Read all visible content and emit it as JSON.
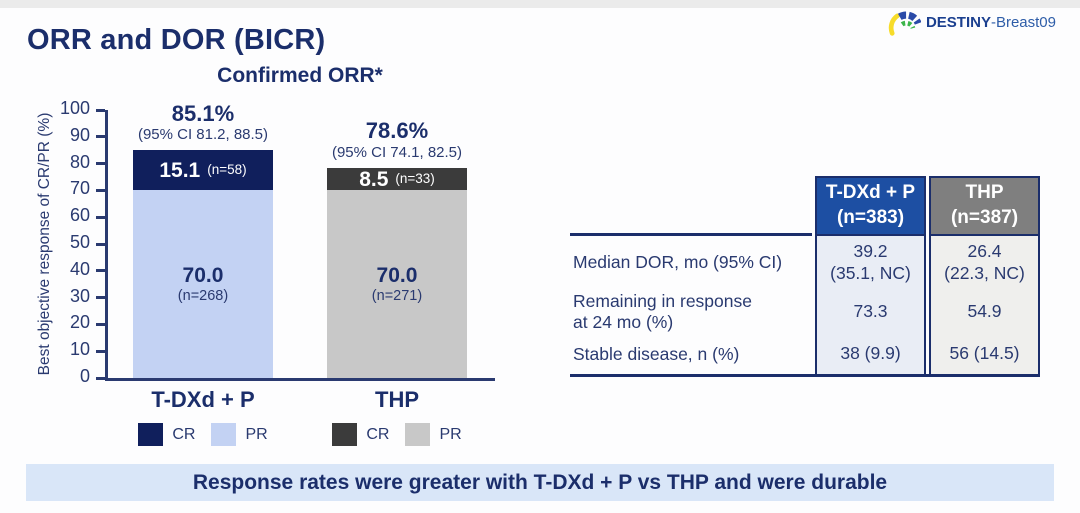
{
  "page_title": "ORR and DOR (BICR)",
  "logo": {
    "name_bold": "DESTINY",
    "name_rest": "-Breast09",
    "icon": "destiny-fan-icon",
    "icon_colors": {
      "yellow": "#f7dc2a",
      "blue": "#2a4aa8",
      "green": "#3cb54a"
    }
  },
  "chart_data": {
    "type": "bar",
    "stacked": true,
    "title": "Confirmed ORR*",
    "ylabel": "Best objective response of CR/PR (%)",
    "xlabel": "",
    "ylim": [
      0,
      100
    ],
    "y_ticks": [
      100,
      90,
      80,
      70,
      60,
      50,
      40,
      30,
      20,
      10,
      0
    ],
    "grid": false,
    "legend_position": "below-each-bar",
    "categories": [
      "T-DXd + P",
      "THP"
    ],
    "series": [
      {
        "name": "CR",
        "values": [
          15.1,
          8.5
        ],
        "labels": [
          "15.1",
          "8.5"
        ],
        "n_labels": [
          "(n=58)",
          "(n=33)"
        ],
        "colors": [
          "#101f5c",
          "#3b3b3b"
        ]
      },
      {
        "name": "PR",
        "values": [
          70.0,
          70.0
        ],
        "labels": [
          "70.0",
          "70.0"
        ],
        "n_labels": [
          "(n=268)",
          "(n=271)"
        ],
        "colors": [
          "#c3d2f3",
          "#c8c8c8"
        ]
      }
    ],
    "totals": [
      {
        "pct_label": "85.1%",
        "ci_label": "(95% CI 81.2, 88.5)"
      },
      {
        "pct_label": "78.6%",
        "ci_label": "(95% CI 74.1, 82.5)"
      }
    ]
  },
  "dor_table": {
    "columns": [
      {
        "header": "T-DXd + P\n(n=383)",
        "header_bg": "#1d4fa3",
        "cell_bg": "#e9edf5"
      },
      {
        "header": "THP\n(n=387)",
        "header_bg": "#7f7f7f",
        "cell_bg": "#efefed"
      }
    ],
    "rows": [
      {
        "label": "Median DOR, mo (95% CI)",
        "values": [
          "39.2\n(35.1, NC)",
          "26.4\n(22.3, NC)"
        ]
      },
      {
        "label": "Remaining in response\nat 24 mo (%)",
        "values": [
          "73.3",
          "54.9"
        ]
      },
      {
        "label": "Stable disease, n (%)",
        "values": [
          "38 (9.9)",
          "56 (14.5)"
        ]
      }
    ]
  },
  "banner": {
    "text": "Response rates were greater with T-DXd + P vs THP and were durable",
    "bg_color": "#d9e6f8"
  }
}
